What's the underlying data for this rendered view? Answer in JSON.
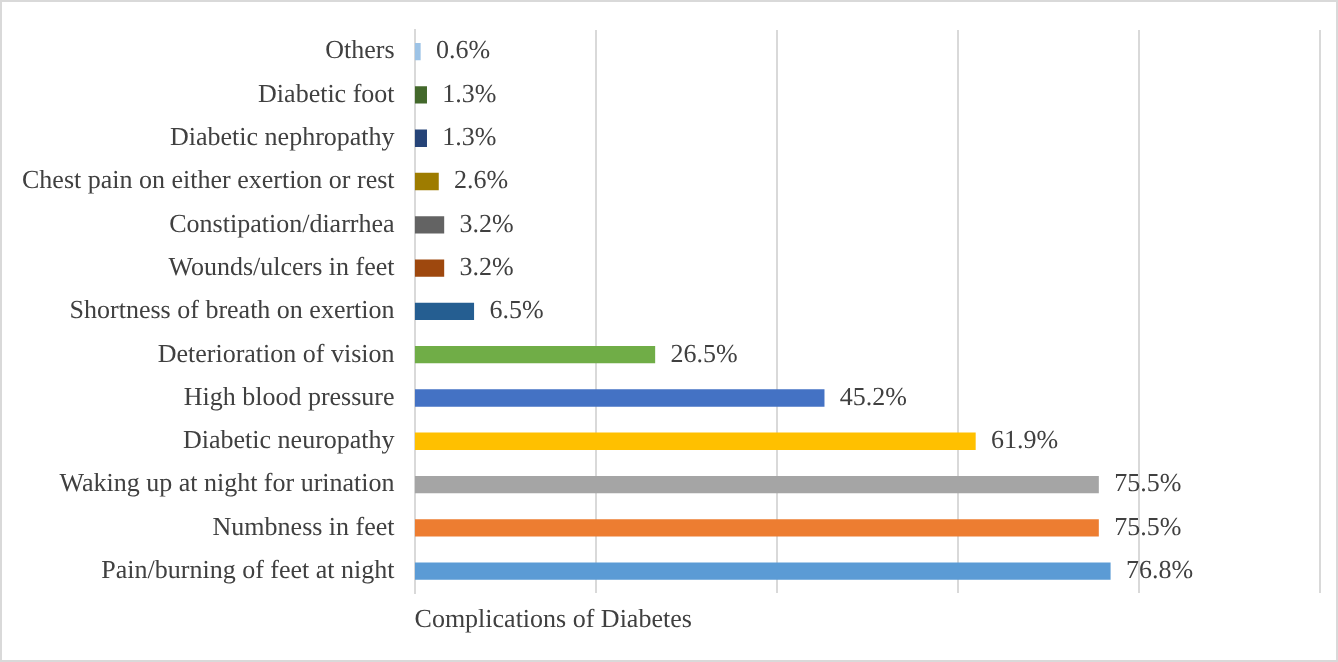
{
  "chart_data": {
    "type": "bar",
    "orientation": "horizontal",
    "xlabel": "Complications of Diabetes",
    "categories": [
      "Others",
      "Diabetic foot",
      "Diabetic nephropathy",
      "Chest pain on either exertion or rest",
      "Constipation/diarrhea",
      "Wounds/ulcers in feet",
      "Shortness of breath on exertion",
      "Deterioration of vision",
      "High blood pressure",
      "Diabetic neuropathy",
      "Waking up at night for urination",
      "Numbness in feet",
      "Pain/burning of feet at night"
    ],
    "values": [
      0.6,
      1.3,
      1.3,
      2.6,
      3.2,
      3.2,
      6.5,
      26.5,
      45.2,
      61.9,
      75.5,
      75.5,
      76.8
    ],
    "value_labels": [
      "0.6%",
      "1.3%",
      "1.3%",
      "2.6%",
      "3.2%",
      "3.2%",
      "6.5%",
      "26.5%",
      "45.2%",
      "61.9%",
      "75.5%",
      "75.5%",
      "76.8%"
    ],
    "colors": [
      "#9dc3e6",
      "#43682b",
      "#264478",
      "#9e7c00",
      "#636363",
      "#9e480e",
      "#255e91",
      "#70ad47",
      "#4472c4",
      "#ffc000",
      "#a5a5a5",
      "#ed7d31",
      "#5b9bd5"
    ],
    "xlim": [
      0,
      100
    ],
    "xticks": [
      {
        "value": 0,
        "label": null
      },
      {
        "value": 20,
        "label": null
      },
      {
        "value": 40,
        "label": null
      },
      {
        "value": 60,
        "label": null
      },
      {
        "value": 80,
        "label": null
      },
      {
        "value": 100,
        "label": null
      }
    ],
    "grid": "x",
    "tick_labels": "y",
    "legend": false
  }
}
